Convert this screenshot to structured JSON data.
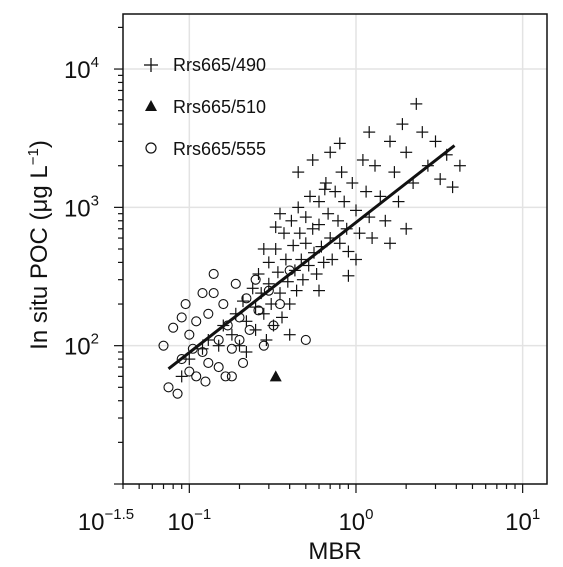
{
  "chart_data": {
    "type": "scatter",
    "title": "",
    "xlabel": "MBR",
    "ylabel": {
      "main": "In situ POC (",
      "mu": "μ",
      "unit": "g L",
      "exp": "−1",
      "close": ")"
    },
    "x_scale": "log",
    "y_scale": "log",
    "xlim": [
      0.04,
      14
    ],
    "ylim": [
      10,
      25000
    ],
    "grid": true,
    "legend_position": "top-left",
    "x_ticks": [
      {
        "value": 0.0316,
        "base": "10",
        "exp": "−1.5"
      },
      {
        "value": 0.1,
        "base": "10",
        "exp": "−1"
      },
      {
        "value": 1,
        "base": "10",
        "exp": "0"
      },
      {
        "value": 10,
        "base": "10",
        "exp": "1"
      }
    ],
    "y_ticks": [
      {
        "value": 100,
        "base": "10",
        "exp": "2"
      },
      {
        "value": 1000,
        "base": "10",
        "exp": "3"
      },
      {
        "value": 10000,
        "base": "10",
        "exp": "4"
      }
    ],
    "series": [
      {
        "name": "Rrs665/490",
        "marker": "plus",
        "points": [
          [
            0.09,
            60
          ],
          [
            0.1,
            80
          ],
          [
            0.12,
            95
          ],
          [
            0.13,
            110
          ],
          [
            0.15,
            100
          ],
          [
            0.16,
            140
          ],
          [
            0.18,
            120
          ],
          [
            0.19,
            170
          ],
          [
            0.2,
            100
          ],
          [
            0.21,
            210
          ],
          [
            0.22,
            150
          ],
          [
            0.22,
            90
          ],
          [
            0.24,
            260
          ],
          [
            0.25,
            190
          ],
          [
            0.25,
            130
          ],
          [
            0.26,
            330
          ],
          [
            0.27,
            240
          ],
          [
            0.28,
            170
          ],
          [
            0.29,
            110
          ],
          [
            0.3,
            400
          ],
          [
            0.3,
            280
          ],
          [
            0.31,
            200
          ],
          [
            0.32,
            140
          ],
          [
            0.33,
            500
          ],
          [
            0.34,
            340
          ],
          [
            0.35,
            240
          ],
          [
            0.36,
            160
          ],
          [
            0.37,
            650
          ],
          [
            0.38,
            420
          ],
          [
            0.39,
            290
          ],
          [
            0.4,
            200
          ],
          [
            0.41,
            800
          ],
          [
            0.42,
            530
          ],
          [
            0.43,
            350
          ],
          [
            0.44,
            250
          ],
          [
            0.45,
            1000
          ],
          [
            0.46,
            650
          ],
          [
            0.47,
            420
          ],
          [
            0.48,
            300
          ],
          [
            0.5,
            850
          ],
          [
            0.5,
            550
          ],
          [
            0.52,
            380
          ],
          [
            0.53,
            1200
          ],
          [
            0.55,
            700
          ],
          [
            0.56,
            470
          ],
          [
            0.58,
            330
          ],
          [
            0.6,
            1100
          ],
          [
            0.6,
            750
          ],
          [
            0.62,
            520
          ],
          [
            0.64,
            400
          ],
          [
            0.66,
            1500
          ],
          [
            0.68,
            900
          ],
          [
            0.7,
            600
          ],
          [
            0.72,
            420
          ],
          [
            0.75,
            1300
          ],
          [
            0.78,
            800
          ],
          [
            0.8,
            550
          ],
          [
            0.82,
            1800
          ],
          [
            0.85,
            1100
          ],
          [
            0.88,
            700
          ],
          [
            0.9,
            480
          ],
          [
            0.95,
            1500
          ],
          [
            1.0,
            950
          ],
          [
            1.05,
            650
          ],
          [
            1.1,
            2200
          ],
          [
            1.15,
            1300
          ],
          [
            1.2,
            850
          ],
          [
            1.25,
            600
          ],
          [
            1.3,
            2000
          ],
          [
            1.4,
            1200
          ],
          [
            1.5,
            800
          ],
          [
            1.6,
            3000
          ],
          [
            1.7,
            1800
          ],
          [
            1.8,
            1100
          ],
          [
            1.9,
            4000
          ],
          [
            2.0,
            2500
          ],
          [
            2.2,
            1500
          ],
          [
            2.3,
            5600
          ],
          [
            2.5,
            3500
          ],
          [
            2.7,
            2000
          ],
          [
            3.0,
            3000
          ],
          [
            3.2,
            1600
          ],
          [
            3.5,
            2400
          ],
          [
            3.8,
            1400
          ],
          [
            4.2,
            2000
          ],
          [
            0.35,
            900
          ],
          [
            0.45,
            1800
          ],
          [
            0.6,
            250
          ],
          [
            0.7,
            2500
          ],
          [
            0.9,
            320
          ],
          [
            1.2,
            3500
          ],
          [
            0.28,
            500
          ],
          [
            0.4,
            120
          ],
          [
            0.55,
            2200
          ],
          [
            0.8,
            2900
          ],
          [
            1.0,
            420
          ],
          [
            1.6,
            550
          ],
          [
            2.0,
            700
          ],
          [
            0.33,
            720
          ],
          [
            0.65,
            1350
          ]
        ]
      },
      {
        "name": "Rrs665/510",
        "marker": "triangle",
        "points": [
          [
            0.33,
            60
          ]
        ]
      },
      {
        "name": "Rrs665/555",
        "marker": "circle",
        "points": [
          [
            0.07,
            100
          ],
          [
            0.075,
            50
          ],
          [
            0.08,
            135
          ],
          [
            0.085,
            45
          ],
          [
            0.09,
            80
          ],
          [
            0.095,
            200
          ],
          [
            0.1,
            120
          ],
          [
            0.1,
            65
          ],
          [
            0.11,
            150
          ],
          [
            0.11,
            60
          ],
          [
            0.12,
            240
          ],
          [
            0.12,
            90
          ],
          [
            0.13,
            170
          ],
          [
            0.13,
            75
          ],
          [
            0.14,
            330
          ],
          [
            0.15,
            110
          ],
          [
            0.15,
            70
          ],
          [
            0.16,
            200
          ],
          [
            0.17,
            140
          ],
          [
            0.18,
            95
          ],
          [
            0.18,
            60
          ],
          [
            0.19,
            280
          ],
          [
            0.2,
            160
          ],
          [
            0.2,
            110
          ],
          [
            0.21,
            75
          ],
          [
            0.22,
            220
          ],
          [
            0.23,
            130
          ],
          [
            0.25,
            300
          ],
          [
            0.26,
            180
          ],
          [
            0.28,
            100
          ],
          [
            0.3,
            250
          ],
          [
            0.32,
            140
          ],
          [
            0.35,
            200
          ],
          [
            0.4,
            350
          ],
          [
            0.5,
            110
          ],
          [
            0.09,
            160
          ],
          [
            0.105,
            95
          ],
          [
            0.125,
            55
          ],
          [
            0.14,
            240
          ],
          [
            0.165,
            60
          ]
        ]
      }
    ],
    "fit_line": {
      "x": [
        0.075,
        3.9
      ],
      "y": [
        68,
        2800
      ]
    }
  }
}
